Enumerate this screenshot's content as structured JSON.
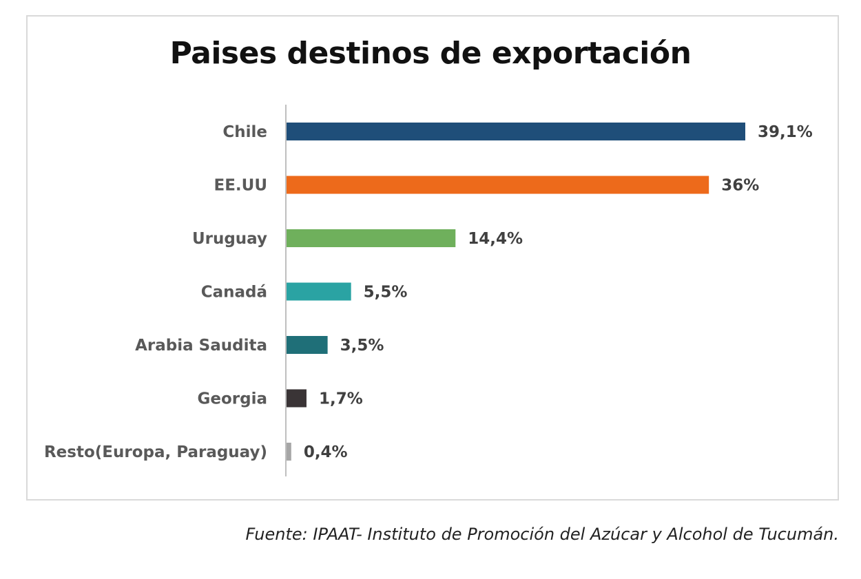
{
  "chart_data": {
    "type": "bar",
    "orientation": "horizontal",
    "title": "Paises destinos de exportación",
    "categories": [
      "Chile",
      "EE.UU",
      "Uruguay",
      "Canadá",
      "Arabia Saudita",
      "Georgia",
      "Resto(Europa, Paraguay)"
    ],
    "values": [
      39.1,
      36,
      14.4,
      5.5,
      3.5,
      1.7,
      0.4
    ],
    "value_labels": [
      "39,1%",
      "36%",
      "14,4%",
      "5,5%",
      "3,5%",
      "1,7%",
      "0,4%"
    ],
    "colors": [
      "#1f4e79",
      "#ed6a1b",
      "#6fb05c",
      "#2aa3a3",
      "#1f6f78",
      "#3a3436",
      "#a6a6a6"
    ],
    "unit": "%",
    "xlim": [
      0,
      39.1
    ],
    "grid": false,
    "legend": "none"
  },
  "source_note": "Fuente: IPAAT- Instituto de Promoción del Azúcar y Alcohol de Tucumán."
}
